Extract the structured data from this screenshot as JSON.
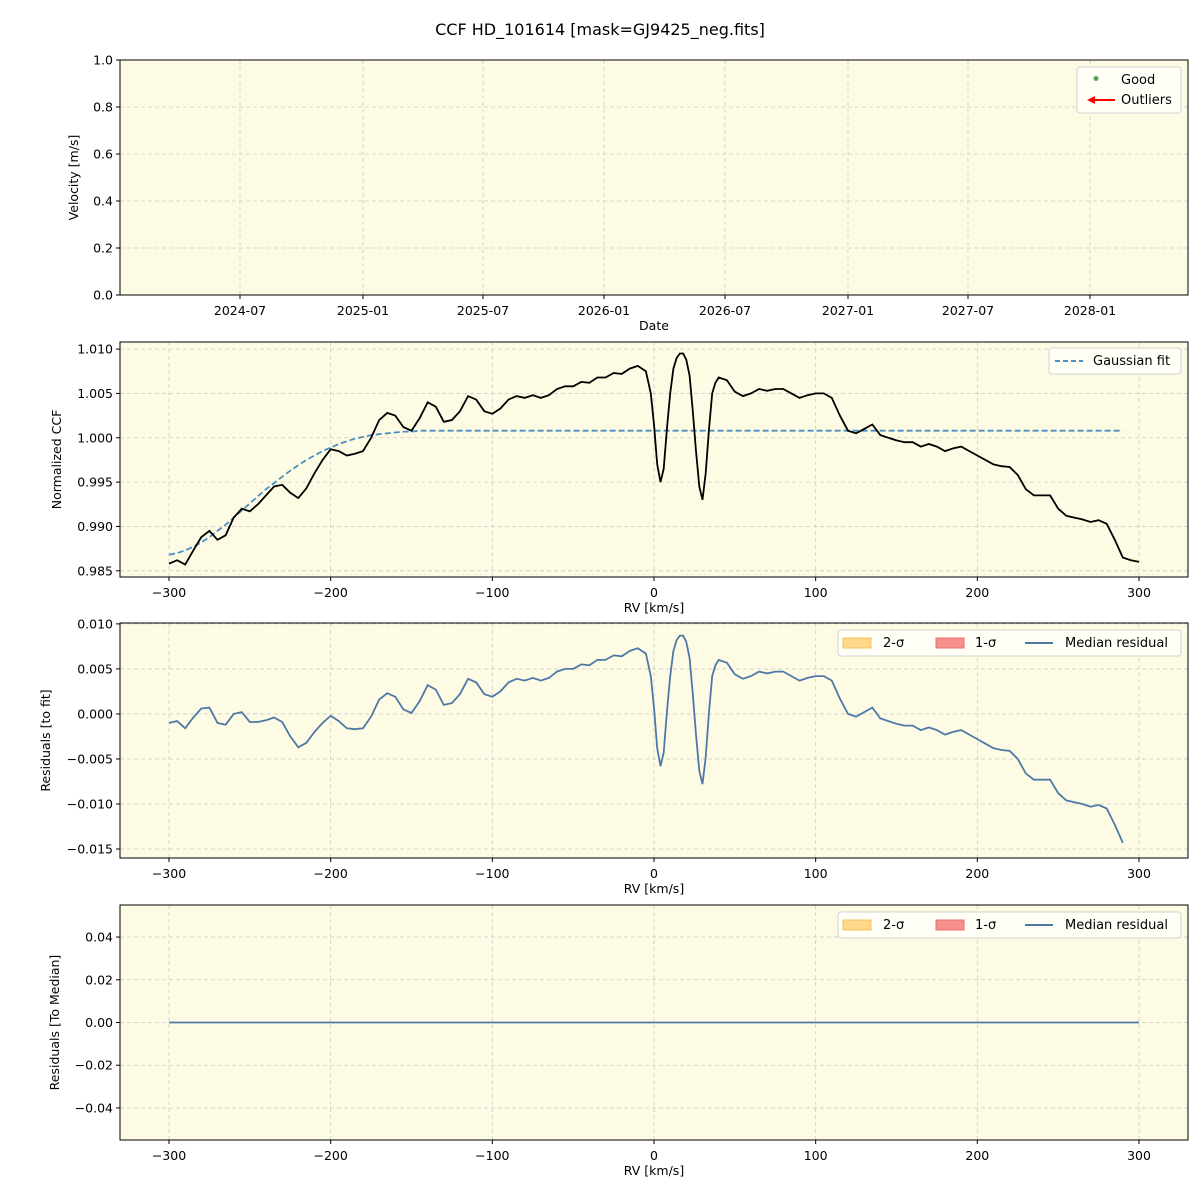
{
  "figure": {
    "title": "CCF HD_101614 [mask=GJ9425_neg.fits]",
    "background": "#ffffff",
    "axes_facecolor": "#fdfbe3",
    "grid_color": "#cccccc"
  },
  "chart_data": [
    {
      "type": "scatter",
      "title": "",
      "xlabel": "Date",
      "ylabel": "Velocity [m/s]",
      "ylim": [
        0.0,
        1.0
      ],
      "xticks": [
        "2024-07",
        "2025-01",
        "2025-07",
        "2026-01",
        "2026-07",
        "2027-01",
        "2027-07",
        "2028-01"
      ],
      "yticks": [
        "0.0",
        "0.2",
        "0.4",
        "0.6",
        "0.8",
        "1.0"
      ],
      "grid": true,
      "legend": {
        "position": "upper right",
        "entries": [
          {
            "label": "Good",
            "marker": "dot",
            "color": "#5aa55a"
          },
          {
            "label": "Outliers",
            "marker": "left-arrow",
            "color": "#ff0000"
          }
        ]
      },
      "series": [
        {
          "name": "Good",
          "values": []
        },
        {
          "name": "Outliers",
          "values": []
        }
      ]
    },
    {
      "type": "line",
      "xlabel": "RV [km/s]",
      "ylabel": "Normalized CCF",
      "xlim": [
        -330,
        330
      ],
      "ylim": [
        0.9843,
        1.0108
      ],
      "xticks": [
        "−300",
        "−200",
        "−100",
        "0",
        "100",
        "200",
        "300"
      ],
      "yticks": [
        "0.985",
        "0.990",
        "0.995",
        "1.000",
        "1.005",
        "1.010"
      ],
      "grid": true,
      "legend": {
        "position": "upper right",
        "entries": [
          {
            "label": "Gaussian fit",
            "style": "dashed",
            "color": "#4c8fc0"
          }
        ]
      },
      "x": [
        -300,
        -295,
        -290,
        -285,
        -280,
        -275,
        -270,
        -265,
        -260,
        -255,
        -250,
        -245,
        -240,
        -235,
        -230,
        -225,
        -220,
        -215,
        -210,
        -205,
        -200,
        -195,
        -190,
        -185,
        -180,
        -175,
        -170,
        -165,
        -160,
        -155,
        -150,
        -145,
        -140,
        -135,
        -130,
        -125,
        -120,
        -115,
        -110,
        -105,
        -100,
        -95,
        -90,
        -85,
        -80,
        -75,
        -70,
        -65,
        -60,
        -55,
        -50,
        -45,
        -40,
        -35,
        -30,
        -25,
        -20,
        -15,
        -10,
        -5,
        -2,
        0,
        2,
        4,
        6,
        8,
        10,
        12,
        14,
        16,
        18,
        20,
        22,
        24,
        26,
        28,
        30,
        32,
        34,
        36,
        38,
        40,
        45,
        50,
        55,
        60,
        65,
        70,
        75,
        80,
        85,
        90,
        95,
        100,
        105,
        110,
        115,
        120,
        125,
        130,
        135,
        140,
        145,
        150,
        155,
        160,
        165,
        170,
        175,
        180,
        185,
        190,
        195,
        200,
        205,
        210,
        215,
        220,
        225,
        230,
        235,
        240,
        245,
        250,
        255,
        260,
        265,
        270,
        275,
        280,
        285,
        290,
        295,
        300
      ],
      "series": [
        {
          "name": "CCF",
          "color": "#000000",
          "values": [
            0.9858,
            0.9862,
            0.9857,
            0.9873,
            0.9888,
            0.9895,
            0.9885,
            0.989,
            0.991,
            0.992,
            0.9917,
            0.9925,
            0.9935,
            0.9945,
            0.9947,
            0.9938,
            0.9932,
            0.9943,
            0.996,
            0.9975,
            0.9987,
            0.9985,
            0.998,
            0.9982,
            0.9985,
            1.0,
            1.002,
            1.0028,
            1.0025,
            1.0012,
            1.0008,
            1.0022,
            1.004,
            1.0035,
            1.0018,
            1.002,
            1.003,
            1.0047,
            1.0043,
            1.003,
            1.0027,
            1.0033,
            1.0043,
            1.0047,
            1.0045,
            1.0048,
            1.0045,
            1.0048,
            1.0055,
            1.0058,
            1.0058,
            1.0063,
            1.0062,
            1.0068,
            1.0068,
            1.0073,
            1.0072,
            1.0078,
            1.0081,
            1.0075,
            1.005,
            1.0015,
            0.997,
            0.995,
            0.9965,
            1.001,
            1.005,
            1.0078,
            1.009,
            1.0095,
            1.0095,
            1.0088,
            1.007,
            1.003,
            0.9985,
            0.9945,
            0.993,
            0.996,
            1.001,
            1.005,
            1.0062,
            1.0068,
            1.0065,
            1.0052,
            1.0047,
            1.005,
            1.0055,
            1.0053,
            1.0055,
            1.0055,
            1.005,
            1.0045,
            1.0048,
            1.005,
            1.005,
            1.0045,
            1.0025,
            1.0008,
            1.0005,
            1.001,
            1.0015,
            1.0003,
            1.0,
            0.9997,
            0.9995,
            0.9995,
            0.999,
            0.9993,
            0.999,
            0.9985,
            0.9988,
            0.999,
            0.9985,
            0.998,
            0.9975,
            0.997,
            0.9968,
            0.9967,
            0.9958,
            0.9942,
            0.9935,
            0.9935,
            0.9935,
            0.992,
            0.9912,
            0.991,
            0.9908,
            0.9905,
            0.9907,
            0.9903,
            0.9885,
            0.9865,
            0.9862,
            0.986
          ]
        },
        {
          "name": "Gaussian fit",
          "color": "#4c8fc0",
          "style": "dashed",
          "values": [
            0.9868,
            0.987,
            0.9873,
            0.9877,
            0.9882,
            0.9888,
            0.9895,
            0.9902,
            0.991,
            0.9918,
            0.9926,
            0.9934,
            0.9942,
            0.9949,
            0.9956,
            0.9963,
            0.9969,
            0.9975,
            0.998,
            0.9985,
            0.9989,
            0.9993,
            0.9996,
            0.9999,
            1.0001,
            1.0003,
            1.0004,
            1.0005,
            1.0006,
            1.0007,
            1.0007,
            1.0008,
            1.0008,
            1.0008,
            1.0008,
            1.0008,
            1.0008,
            1.0008,
            1.0008,
            1.0008,
            1.0008,
            1.0008,
            1.0008,
            1.0008,
            1.0008,
            1.0008,
            1.0008,
            1.0008,
            1.0008,
            1.0008,
            1.0008,
            1.0008,
            1.0008,
            1.0008,
            1.0008,
            1.0008,
            1.0008,
            1.0008,
            1.0008,
            1.0008,
            1.0008,
            1.0008,
            1.0008,
            1.0008,
            1.0008,
            1.0008,
            1.0008,
            1.0008,
            1.0008,
            1.0008,
            1.0008,
            1.0008,
            1.0008,
            1.0008,
            1.0008,
            1.0008,
            1.0008,
            1.0008,
            1.0008,
            1.0008,
            1.0008,
            1.0008,
            1.0008,
            1.0008,
            1.0008,
            1.0008,
            1.0008,
            1.0008,
            1.0008,
            1.0008,
            1.0008,
            1.0008,
            1.0008,
            1.0008,
            1.0008,
            1.0008,
            1.0008,
            1.0008,
            1.0008,
            1.0008,
            1.0008,
            1.0008,
            1.0008,
            1.0008,
            1.0008,
            1.0008,
            1.0008,
            1.0008,
            1.0008,
            1.0008,
            1.0008,
            1.0008,
            1.0008,
            1.0008,
            1.0008,
            1.0008,
            1.0008,
            1.0008,
            1.0008,
            1.0008,
            1.0008,
            1.0008,
            1.0008,
            1.0008,
            1.0008,
            1.0008,
            1.0008,
            1.0008,
            1.0008,
            1.0008,
            1.0008,
            1.0008
          ]
        }
      ]
    },
    {
      "type": "line",
      "xlabel": "RV [km/s]",
      "ylabel": "Residuals [to fit]",
      "xlim": [
        -330,
        330
      ],
      "ylim": [
        -0.016,
        0.0101
      ],
      "xticks": [
        "−300",
        "−200",
        "−100",
        "0",
        "100",
        "200",
        "300"
      ],
      "yticks": [
        "−0.015",
        "−0.010",
        "−0.005",
        "0.000",
        "0.005",
        "0.010"
      ],
      "grid": true,
      "legend": {
        "position": "upper right",
        "ncol": 3,
        "entries": [
          {
            "label": "2-σ",
            "swatch": "#fdd78a"
          },
          {
            "label": "1-σ",
            "swatch": "#f89090"
          },
          {
            "label": "Median residual",
            "style": "line",
            "color": "#4e79a7"
          }
        ]
      },
      "series": [
        {
          "name": "Median residual",
          "color": "#4e79a7",
          "derived": "CCF minus Gaussian fit"
        }
      ]
    },
    {
      "type": "line",
      "xlabel": "RV [km/s]",
      "ylabel": "Residuals [To Median]",
      "xlim": [
        -330,
        330
      ],
      "ylim": [
        -0.055,
        0.055
      ],
      "xticks": [
        "−300",
        "−200",
        "−100",
        "0",
        "100",
        "200",
        "300"
      ],
      "yticks": [
        "−0.04",
        "−0.02",
        "0.00",
        "0.02",
        "0.04"
      ],
      "grid": true,
      "legend": {
        "position": "upper right",
        "ncol": 3,
        "entries": [
          {
            "label": "2-σ",
            "swatch": "#fdd78a"
          },
          {
            "label": "1-σ",
            "swatch": "#f89090"
          },
          {
            "label": "Median residual",
            "style": "line",
            "color": "#4e79a7"
          }
        ]
      },
      "series": [
        {
          "name": "Median residual",
          "color": "#4e79a7",
          "x": [
            -300,
            300
          ],
          "values": [
            0.0,
            0.0
          ]
        }
      ]
    }
  ]
}
